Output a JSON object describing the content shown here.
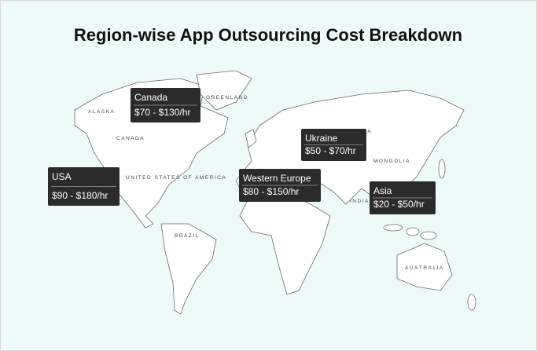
{
  "title": "Region-wise App Outsourcing Cost Breakdown",
  "callouts": [
    {
      "region": "Canada",
      "cost": "$70 - $130/hr"
    },
    {
      "region": "USA",
      "cost": "$90 - $180/hr"
    },
    {
      "region": "Western Europe",
      "cost": "$80 - $150/hr"
    },
    {
      "region": "Ukraine",
      "cost": "$50 - $70/hr"
    },
    {
      "region": "Asia",
      "cost": "$20 - $50/hr"
    }
  ],
  "map_labels": [
    "CANADA",
    "RUSSIA",
    "BRAZIL",
    "AUSTRALIA",
    "GREENLAND",
    "ALASKA",
    "UNITED STATES OF AMERICA",
    "MONGOLIA",
    "INDIA"
  ]
}
